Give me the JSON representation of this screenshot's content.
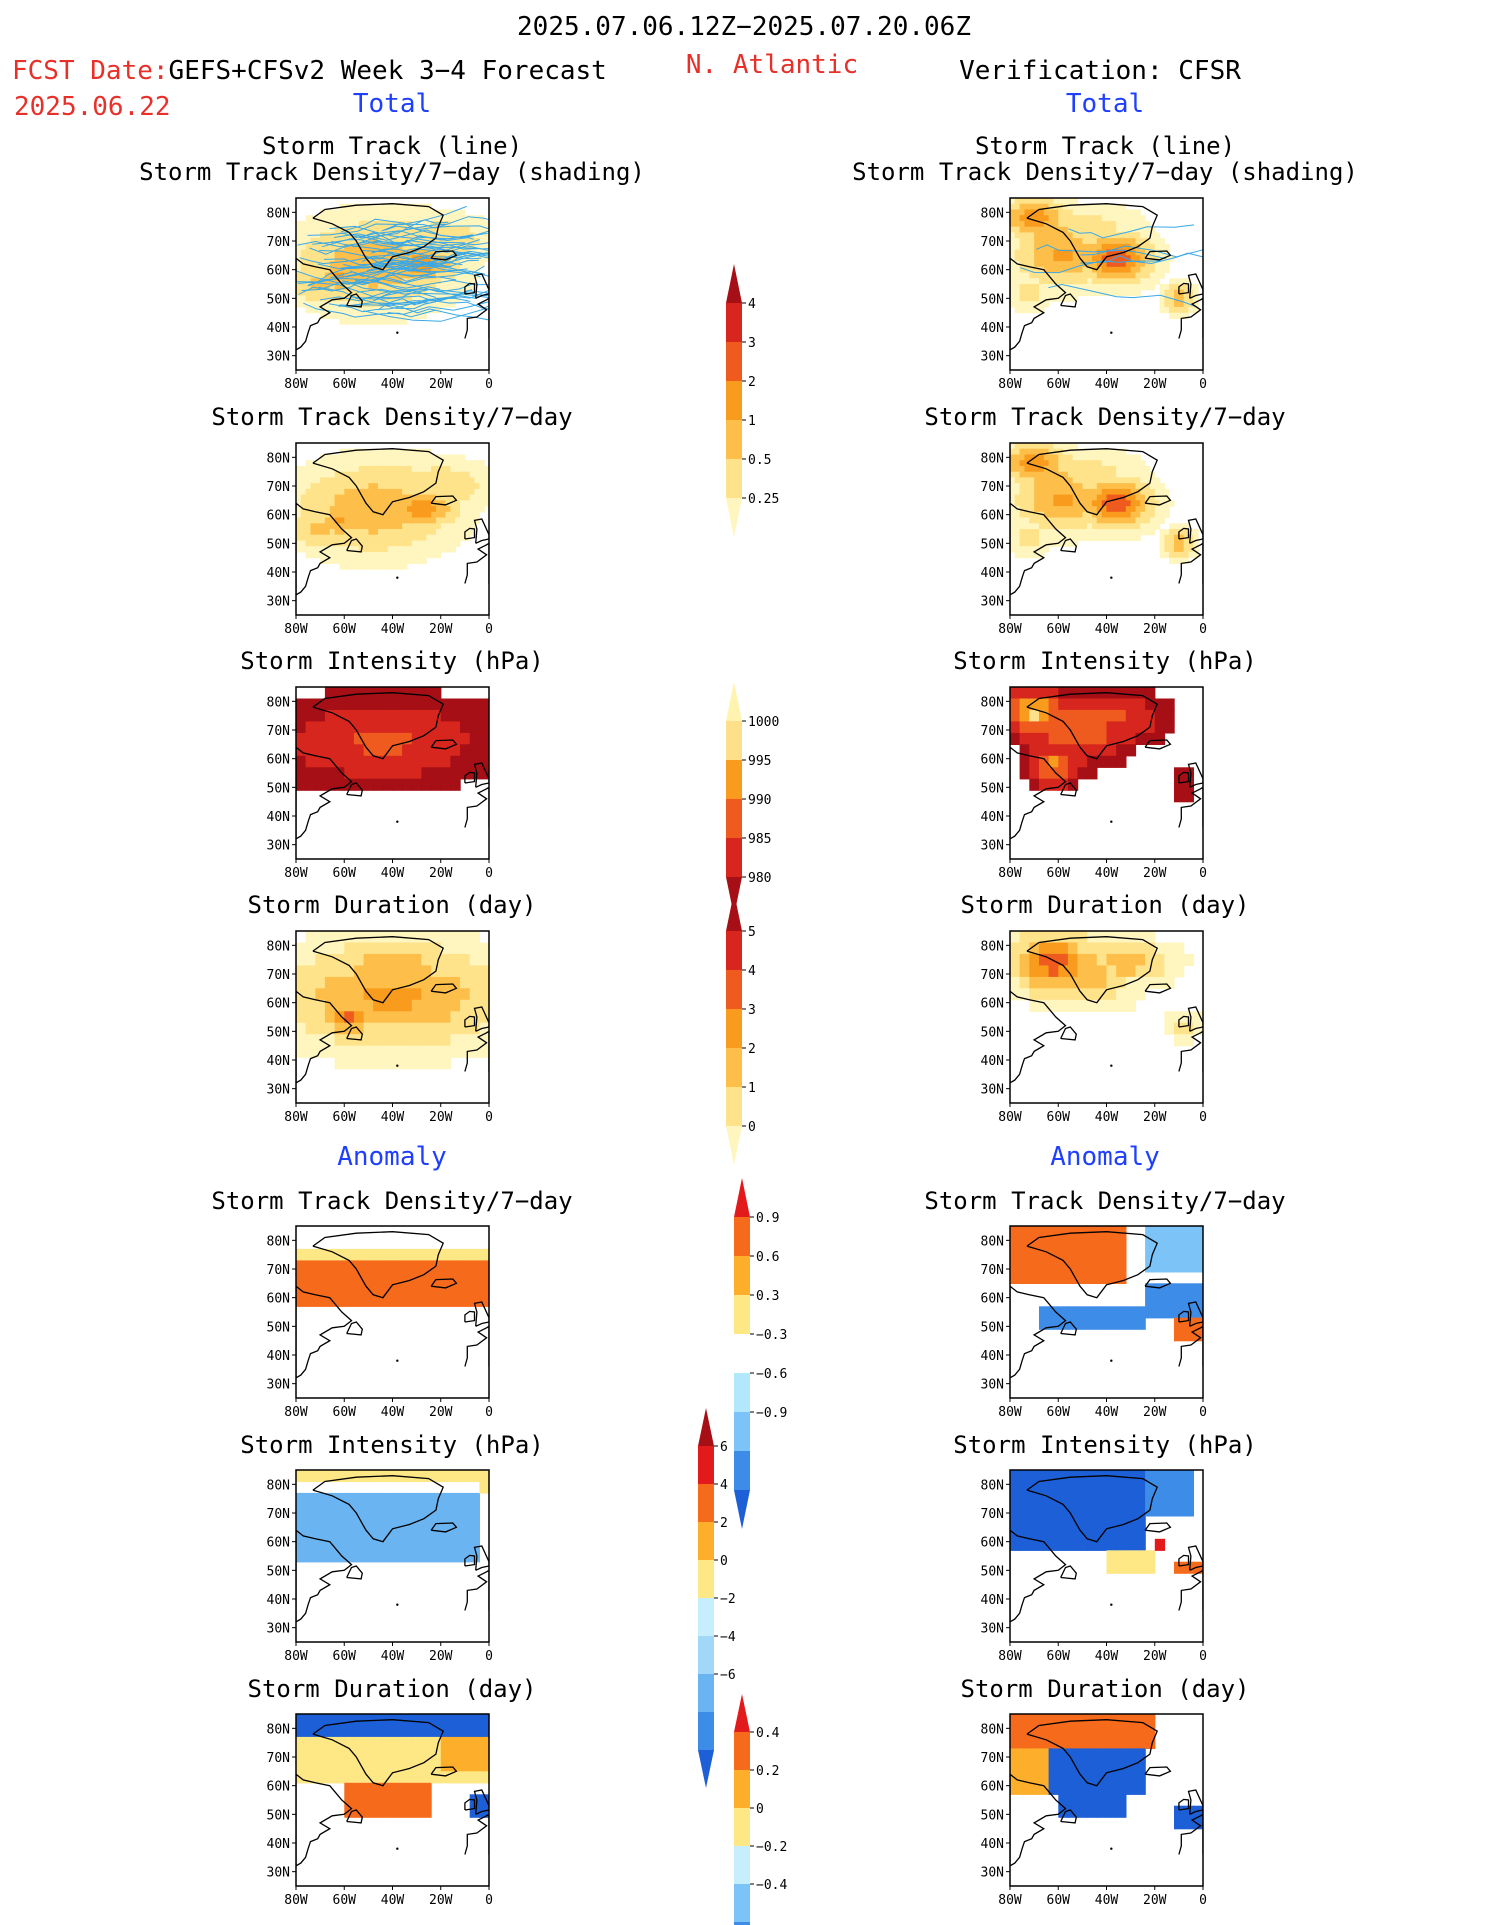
{
  "header": {
    "date_range": "2025.07.06.12Z−2025.07.20.06Z",
    "fcst_label": "FCST Date:",
    "model_label": "GEFS+CFSv2 Week 3−4 Forecast",
    "fcst_date": "2025.06.22",
    "region": "N. Atlantic",
    "verification": "Verification: CFSR",
    "total_left": "Total",
    "total_right": "Total",
    "anomaly_left": "Anomaly",
    "anomaly_right": "Anomaly"
  },
  "colors": {
    "red_text": "#e8302a",
    "blue_text": "#1f3fff",
    "track_line": "#38a8e8"
  },
  "panel_titles": {
    "track_line": "Storm Track (line)",
    "track_shading": "Storm Track Density/7−day (shading)",
    "density": "Storm Track Density/7−day",
    "intensity": "Storm Intensity (hPa)",
    "duration": "Storm Duration (day)"
  },
  "map_axes": {
    "lon_ticks": [
      "80W",
      "60W",
      "40W",
      "20W",
      "0"
    ],
    "lat_ticks": [
      "80N",
      "70N",
      "60N",
      "50N",
      "40N",
      "30N"
    ]
  },
  "chart_data": [
    {
      "type": "heatmap",
      "panel": "forecast-total-track",
      "column": "GEFS+CFSv2 Week 3−4 Forecast",
      "lon_range": [
        -80,
        0
      ],
      "lat_range": [
        25,
        85
      ],
      "colorbar": "density"
    },
    {
      "type": "heatmap",
      "panel": "verification-total-track",
      "column": "Verification: CFSR",
      "lon_range": [
        -80,
        0
      ],
      "lat_range": [
        25,
        85
      ],
      "colorbar": "density"
    },
    {
      "type": "heatmap",
      "panel": "forecast-total-density",
      "lon_range": [
        -80,
        0
      ],
      "lat_range": [
        25,
        85
      ],
      "colorbar": "density"
    },
    {
      "type": "heatmap",
      "panel": "verification-total-density",
      "lon_range": [
        -80,
        0
      ],
      "lat_range": [
        25,
        85
      ],
      "colorbar": "density"
    },
    {
      "type": "heatmap",
      "panel": "forecast-total-intensity",
      "lon_range": [
        -80,
        0
      ],
      "lat_range": [
        25,
        85
      ],
      "colorbar": "intensity"
    },
    {
      "type": "heatmap",
      "panel": "verification-total-intensity",
      "lon_range": [
        -80,
        0
      ],
      "lat_range": [
        25,
        85
      ],
      "colorbar": "intensity"
    },
    {
      "type": "heatmap",
      "panel": "forecast-total-duration",
      "lon_range": [
        -80,
        0
      ],
      "lat_range": [
        25,
        85
      ],
      "colorbar": "duration"
    },
    {
      "type": "heatmap",
      "panel": "verification-total-duration",
      "lon_range": [
        -80,
        0
      ],
      "lat_range": [
        25,
        85
      ],
      "colorbar": "duration"
    },
    {
      "type": "heatmap",
      "panel": "forecast-anomaly-density",
      "lon_range": [
        -80,
        0
      ],
      "lat_range": [
        25,
        85
      ],
      "colorbar": "density_anom"
    },
    {
      "type": "heatmap",
      "panel": "verification-anomaly-density",
      "lon_range": [
        -80,
        0
      ],
      "lat_range": [
        25,
        85
      ],
      "colorbar": "density_anom"
    },
    {
      "type": "heatmap",
      "panel": "forecast-anomaly-intensity",
      "lon_range": [
        -80,
        0
      ],
      "lat_range": [
        25,
        85
      ],
      "colorbar": "intensity_anom"
    },
    {
      "type": "heatmap",
      "panel": "verification-anomaly-intensity",
      "lon_range": [
        -80,
        0
      ],
      "lat_range": [
        25,
        85
      ],
      "colorbar": "intensity_anom"
    },
    {
      "type": "heatmap",
      "panel": "forecast-anomaly-duration",
      "lon_range": [
        -80,
        0
      ],
      "lat_range": [
        25,
        85
      ],
      "colorbar": "duration_anom"
    },
    {
      "type": "heatmap",
      "panel": "verification-anomaly-duration",
      "lon_range": [
        -80,
        0
      ],
      "lat_range": [
        25,
        85
      ],
      "colorbar": "duration_anom"
    }
  ],
  "colorbars": {
    "density": {
      "labels": [
        "4",
        "3",
        "2",
        "1",
        "0.5",
        "0.25"
      ],
      "colors": [
        "#a50f15",
        "#d7261e",
        "#ef5a1e",
        "#f99b1c",
        "#fdbf4a",
        "#fee38a",
        "#fff5bf"
      ]
    },
    "intensity": {
      "labels": [
        "1000",
        "995",
        "990",
        "985",
        "980"
      ],
      "colors": [
        "#fff3b0",
        "#fee08b",
        "#f99b1c",
        "#ef5a1e",
        "#d7261e",
        "#a50f15"
      ]
    },
    "duration": {
      "labels": [
        "5",
        "4",
        "3",
        "2",
        "1",
        "0"
      ],
      "colors": [
        "#a50f15",
        "#d7261e",
        "#ef5a1e",
        "#f99b1c",
        "#fdbf4a",
        "#fee38a",
        "#fff5bf"
      ]
    },
    "density_anom": {
      "labels": [
        "0.9",
        "0.6",
        "0.3",
        "−0.3",
        "−0.6",
        "−0.9"
      ],
      "colors": [
        "#e31a1c",
        "#f66a1c",
        "#fdae2b",
        "#fee785",
        "#ffffff",
        "#b3e7fb",
        "#7cc4f7",
        "#3d8de8",
        "#1c5fd6"
      ]
    },
    "intensity_anom": {
      "labels": [
        "6",
        "4",
        "2",
        "0",
        "−2",
        "−4",
        "−6"
      ],
      "colors": [
        "#a50f15",
        "#e31a1c",
        "#f66a1c",
        "#fdae2b",
        "#fee785",
        "#c7eefc",
        "#a1d8f8",
        "#6ab4f2",
        "#3d8de8",
        "#1c5fd6"
      ]
    },
    "duration_anom": {
      "labels": [
        "0.4",
        "0.2",
        "0",
        "−0.2",
        "−0.4"
      ],
      "colors": [
        "#e31a1c",
        "#f66a1c",
        "#fdae2b",
        "#fee785",
        "#c7eefc",
        "#7cc4f7",
        "#3d8de8",
        "#1c5fd6"
      ]
    }
  }
}
